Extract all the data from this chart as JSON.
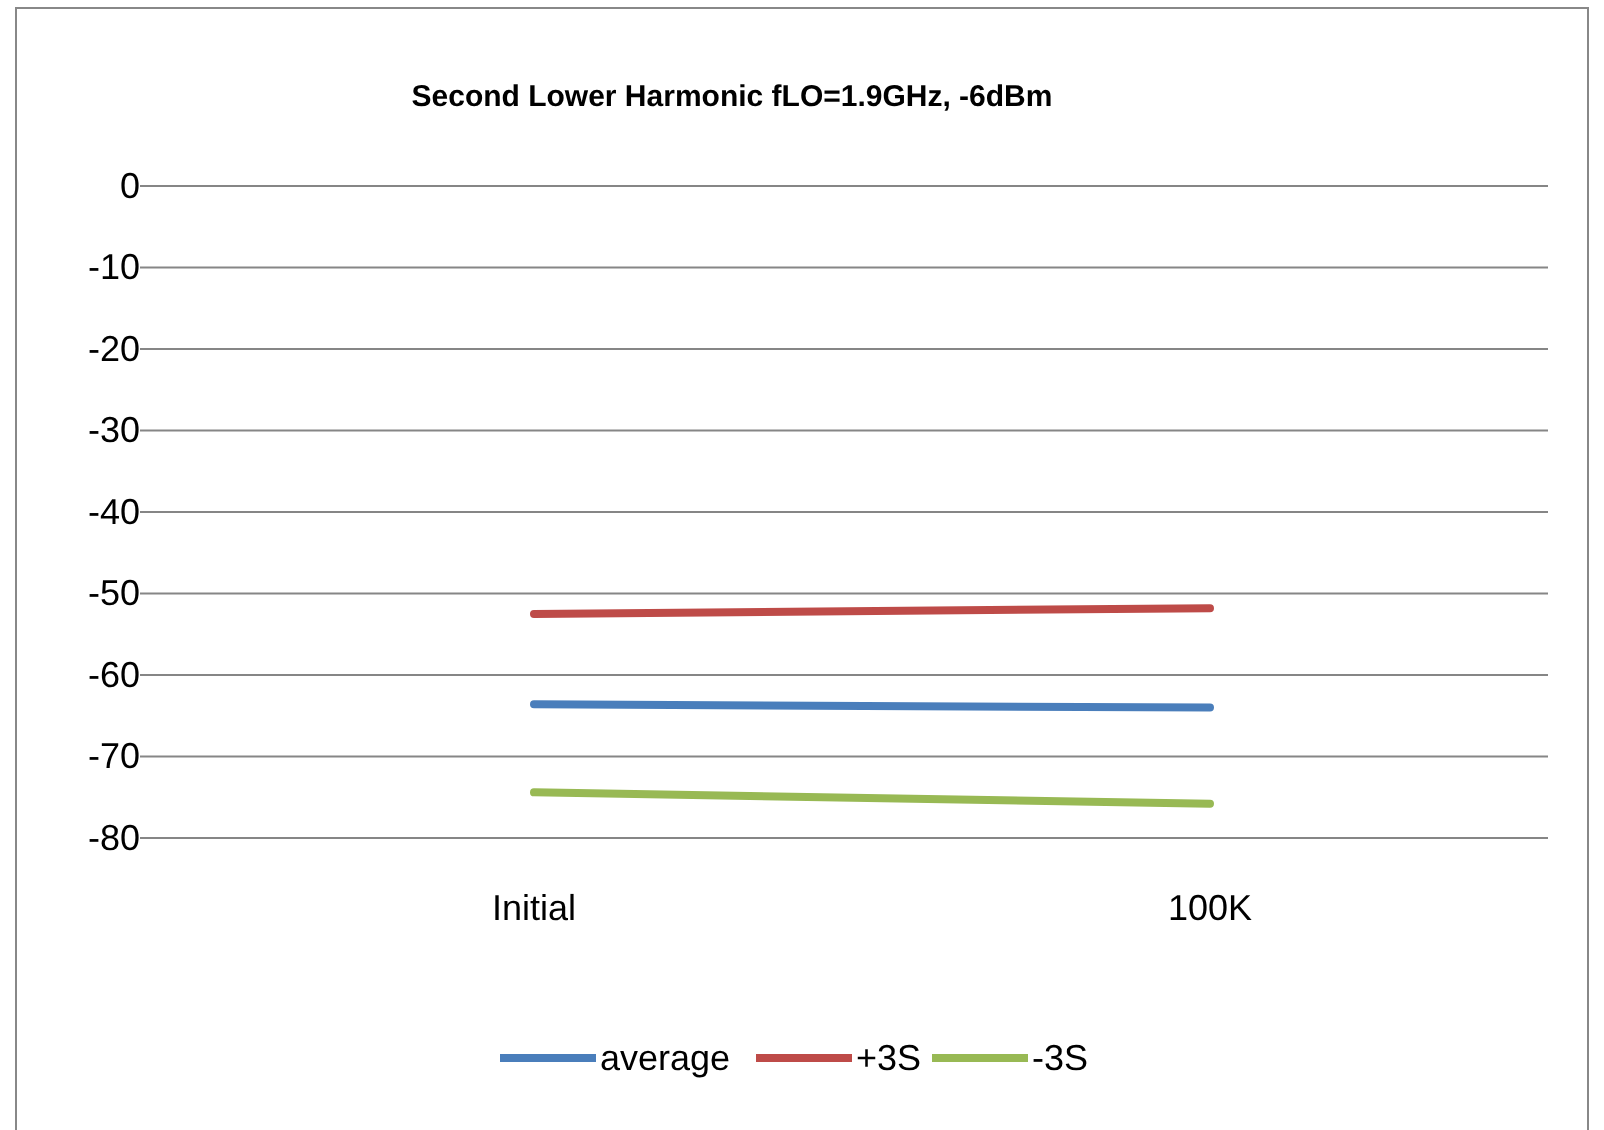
{
  "chart_data": {
    "type": "line",
    "title": "Second Lower Harmonic fLO=1.9GHz, -6dBm",
    "categories": [
      "Initial",
      "100K"
    ],
    "series": [
      {
        "name": "average",
        "color": "#4a7ebb",
        "values": [
          -63.6,
          -64.0
        ]
      },
      {
        "name": "+3S",
        "color": "#be4b48",
        "values": [
          -52.5,
          -51.8
        ]
      },
      {
        "name": "-3S",
        "color": "#98b954",
        "values": [
          -74.4,
          -75.8
        ]
      }
    ],
    "ylim": [
      -80,
      0
    ],
    "yticks": [
      0,
      -10,
      -20,
      -30,
      -40,
      -50,
      -60,
      -70,
      -80
    ],
    "grid": "y",
    "legend": "bottom",
    "marker": "none"
  }
}
